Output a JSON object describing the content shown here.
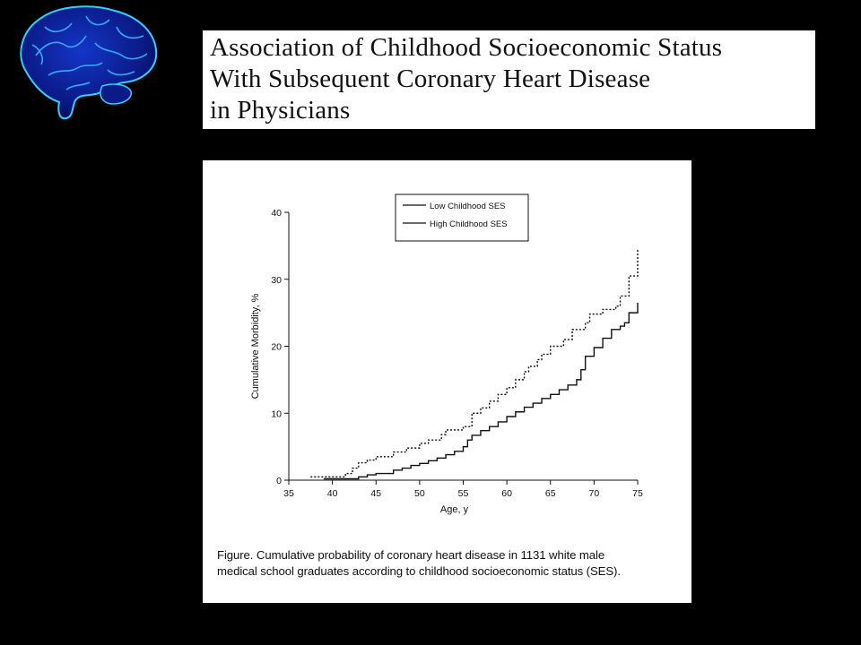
{
  "logo": {
    "icon": "brain-icon",
    "colors": {
      "fill": "#0b1d8c",
      "glow": "#2fd0ff"
    }
  },
  "title": {
    "lines": [
      "Association of Childhood Socioeconomic Status",
      "With Subsequent Coronary Heart Disease",
      "in Physicians"
    ]
  },
  "figure": {
    "caption_lines": [
      "Figure. Cumulative probability of coronary heart disease in 1131 white male",
      "medical school graduates according to childhood socioeconomic status (SES)."
    ]
  },
  "chart_data": {
    "type": "line",
    "step": true,
    "title": "",
    "xlabel": "Age, y",
    "ylabel": "Cumulative Morbidity, %",
    "xlim": [
      35,
      75
    ],
    "ylim": [
      0,
      40
    ],
    "xticks": [
      35,
      40,
      45,
      50,
      55,
      60,
      65,
      70,
      75
    ],
    "yticks": [
      0,
      10,
      20,
      30,
      40
    ],
    "grid": false,
    "legend_position": "top-center",
    "series": [
      {
        "name": "Low Childhood SES",
        "style": "dotted",
        "points": [
          [
            37.5,
            0.5
          ],
          [
            40,
            0.5
          ],
          [
            41.5,
            1.0
          ],
          [
            42.3,
            1.8
          ],
          [
            43,
            2.6
          ],
          [
            44,
            3.0
          ],
          [
            45,
            3.5
          ],
          [
            47,
            4.2
          ],
          [
            48.5,
            4.8
          ],
          [
            50,
            5.5
          ],
          [
            51,
            6.0
          ],
          [
            52.5,
            6.8
          ],
          [
            53,
            7.5
          ],
          [
            55,
            8.0
          ],
          [
            56,
            10.0
          ],
          [
            57,
            10.8
          ],
          [
            58,
            11.8
          ],
          [
            59,
            12.8
          ],
          [
            60,
            13.8
          ],
          [
            61,
            15.0
          ],
          [
            62,
            16.2
          ],
          [
            62.5,
            17.0
          ],
          [
            63.5,
            18.0
          ],
          [
            64,
            18.8
          ],
          [
            65,
            20.0
          ],
          [
            66.5,
            21.0
          ],
          [
            67.5,
            22.5
          ],
          [
            69,
            23.5
          ],
          [
            69.5,
            24.8
          ],
          [
            71,
            25.5
          ],
          [
            72.5,
            26.0
          ],
          [
            73,
            27.5
          ],
          [
            74,
            30.5
          ],
          [
            75,
            30.5
          ],
          [
            75,
            34.5
          ]
        ]
      },
      {
        "name": "High Childhood SES",
        "style": "solid",
        "points": [
          [
            39,
            0.2
          ],
          [
            42,
            0.2
          ],
          [
            43,
            0.5
          ],
          [
            44,
            0.8
          ],
          [
            45,
            1.0
          ],
          [
            47,
            1.5
          ],
          [
            48,
            1.8
          ],
          [
            49,
            2.2
          ],
          [
            50,
            2.5
          ],
          [
            51,
            2.9
          ],
          [
            52,
            3.3
          ],
          [
            53,
            3.8
          ],
          [
            54,
            4.3
          ],
          [
            55,
            5.0
          ],
          [
            55.5,
            6.0
          ],
          [
            56,
            6.7
          ],
          [
            57,
            7.4
          ],
          [
            58,
            8.0
          ],
          [
            59,
            8.7
          ],
          [
            60,
            9.5
          ],
          [
            61,
            10.2
          ],
          [
            62,
            10.9
          ],
          [
            63,
            11.5
          ],
          [
            64,
            12.2
          ],
          [
            65,
            12.8
          ],
          [
            66,
            13.5
          ],
          [
            67,
            14.2
          ],
          [
            68,
            15.0
          ],
          [
            68.5,
            16.5
          ],
          [
            69,
            18.5
          ],
          [
            70,
            19.8
          ],
          [
            71,
            21.2
          ],
          [
            72,
            22.5
          ],
          [
            73,
            23.0
          ],
          [
            73.5,
            23.5
          ],
          [
            74,
            25.0
          ],
          [
            75,
            26.5
          ]
        ]
      }
    ]
  }
}
